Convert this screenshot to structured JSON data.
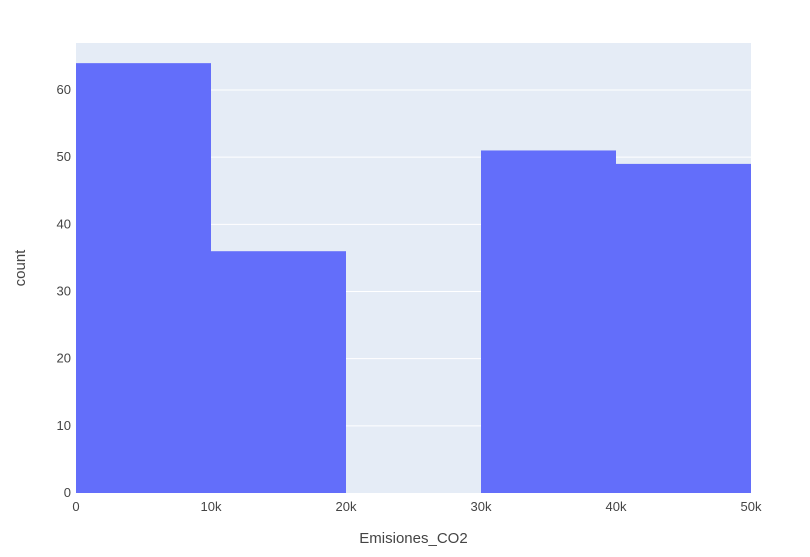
{
  "chart_data": {
    "type": "bar",
    "subtype": "histogram",
    "xlabel": "Emisiones_CO2",
    "ylabel": "count",
    "xlim": [
      0,
      50000
    ],
    "ylim": [
      0,
      67
    ],
    "grid": true,
    "bins": [
      {
        "start": 0,
        "end": 10000,
        "count": 64
      },
      {
        "start": 10000,
        "end": 20000,
        "count": 36
      },
      {
        "start": 20000,
        "end": 30000,
        "count": 0
      },
      {
        "start": 30000,
        "end": 40000,
        "count": 51
      },
      {
        "start": 40000,
        "end": 50000,
        "count": 49
      }
    ],
    "x_ticks": [
      {
        "value": 0,
        "label": "0"
      },
      {
        "value": 10000,
        "label": "10k"
      },
      {
        "value": 20000,
        "label": "20k"
      },
      {
        "value": 30000,
        "label": "30k"
      },
      {
        "value": 40000,
        "label": "40k"
      },
      {
        "value": 50000,
        "label": "50k"
      }
    ],
    "y_ticks": [
      {
        "value": 0,
        "label": "0"
      },
      {
        "value": 10,
        "label": "10"
      },
      {
        "value": 20,
        "label": "20"
      },
      {
        "value": 30,
        "label": "30"
      },
      {
        "value": 40,
        "label": "40"
      },
      {
        "value": 50,
        "label": "50"
      },
      {
        "value": 60,
        "label": "60"
      }
    ],
    "colors": {
      "bar": "#636efa",
      "plot_background": "#e5ecf6",
      "grid": "#ffffff"
    }
  }
}
